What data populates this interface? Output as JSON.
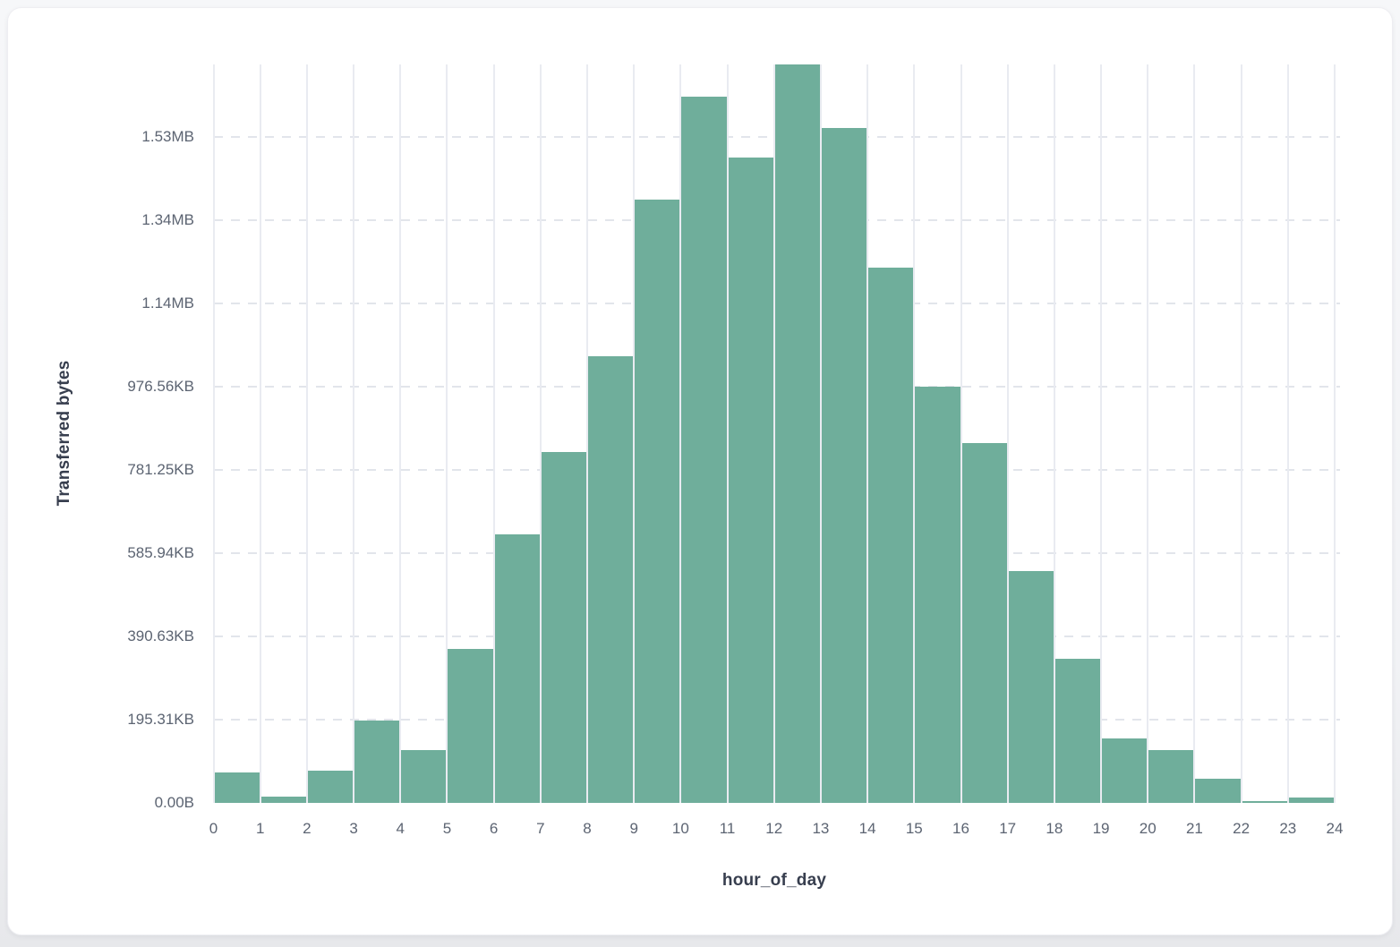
{
  "page": {
    "background_top": "#f6f7f9",
    "background_bottom": "#e7e8eb"
  },
  "card": {
    "background": "#ffffff",
    "border_color": "#eeeef2"
  },
  "chart_data": {
    "type": "bar",
    "title": "",
    "xlabel": "hour_of_day",
    "ylabel": "Transferred bytes",
    "bar_color": "#6fae9b",
    "bar_gap_color": "#ffffff",
    "grid_vertical_color": "#e9ebf1",
    "grid_horizontal_color": "#e2e5eb",
    "tick_label_color": "#5c6472",
    "axis_title_color": "#373e4e",
    "grid": "both",
    "legend_position": "none",
    "categories": [
      0,
      1,
      2,
      3,
      4,
      5,
      6,
      7,
      8,
      9,
      10,
      11,
      12,
      13,
      14,
      15,
      16,
      17,
      18,
      19,
      20,
      21,
      22,
      23
    ],
    "values_kb": [
      71,
      15,
      76,
      193,
      124,
      361,
      630,
      823,
      1049,
      1415,
      1658,
      1514,
      1733,
      1584,
      1257,
      977,
      844,
      545,
      338,
      151,
      124,
      56,
      4,
      13
    ],
    "ylim_kb": [
      0,
      1733
    ],
    "x_ticks": [
      "0",
      "1",
      "2",
      "3",
      "4",
      "5",
      "6",
      "7",
      "8",
      "9",
      "10",
      "11",
      "12",
      "13",
      "14",
      "15",
      "16",
      "17",
      "18",
      "19",
      "20",
      "21",
      "22",
      "23",
      "24"
    ],
    "y_ticks": [
      {
        "label": "0.00B",
        "kb": 0
      },
      {
        "label": "195.31KB",
        "kb": 195.31
      },
      {
        "label": "390.63KB",
        "kb": 390.63
      },
      {
        "label": "585.94KB",
        "kb": 585.94
      },
      {
        "label": "781.25KB",
        "kb": 781.25
      },
      {
        "label": "976.56KB",
        "kb": 976.56
      },
      {
        "label": "1.14MB",
        "kb": 1171.88
      },
      {
        "label": "1.34MB",
        "kb": 1367.19
      },
      {
        "label": "1.53MB",
        "kb": 1562.5
      }
    ]
  }
}
